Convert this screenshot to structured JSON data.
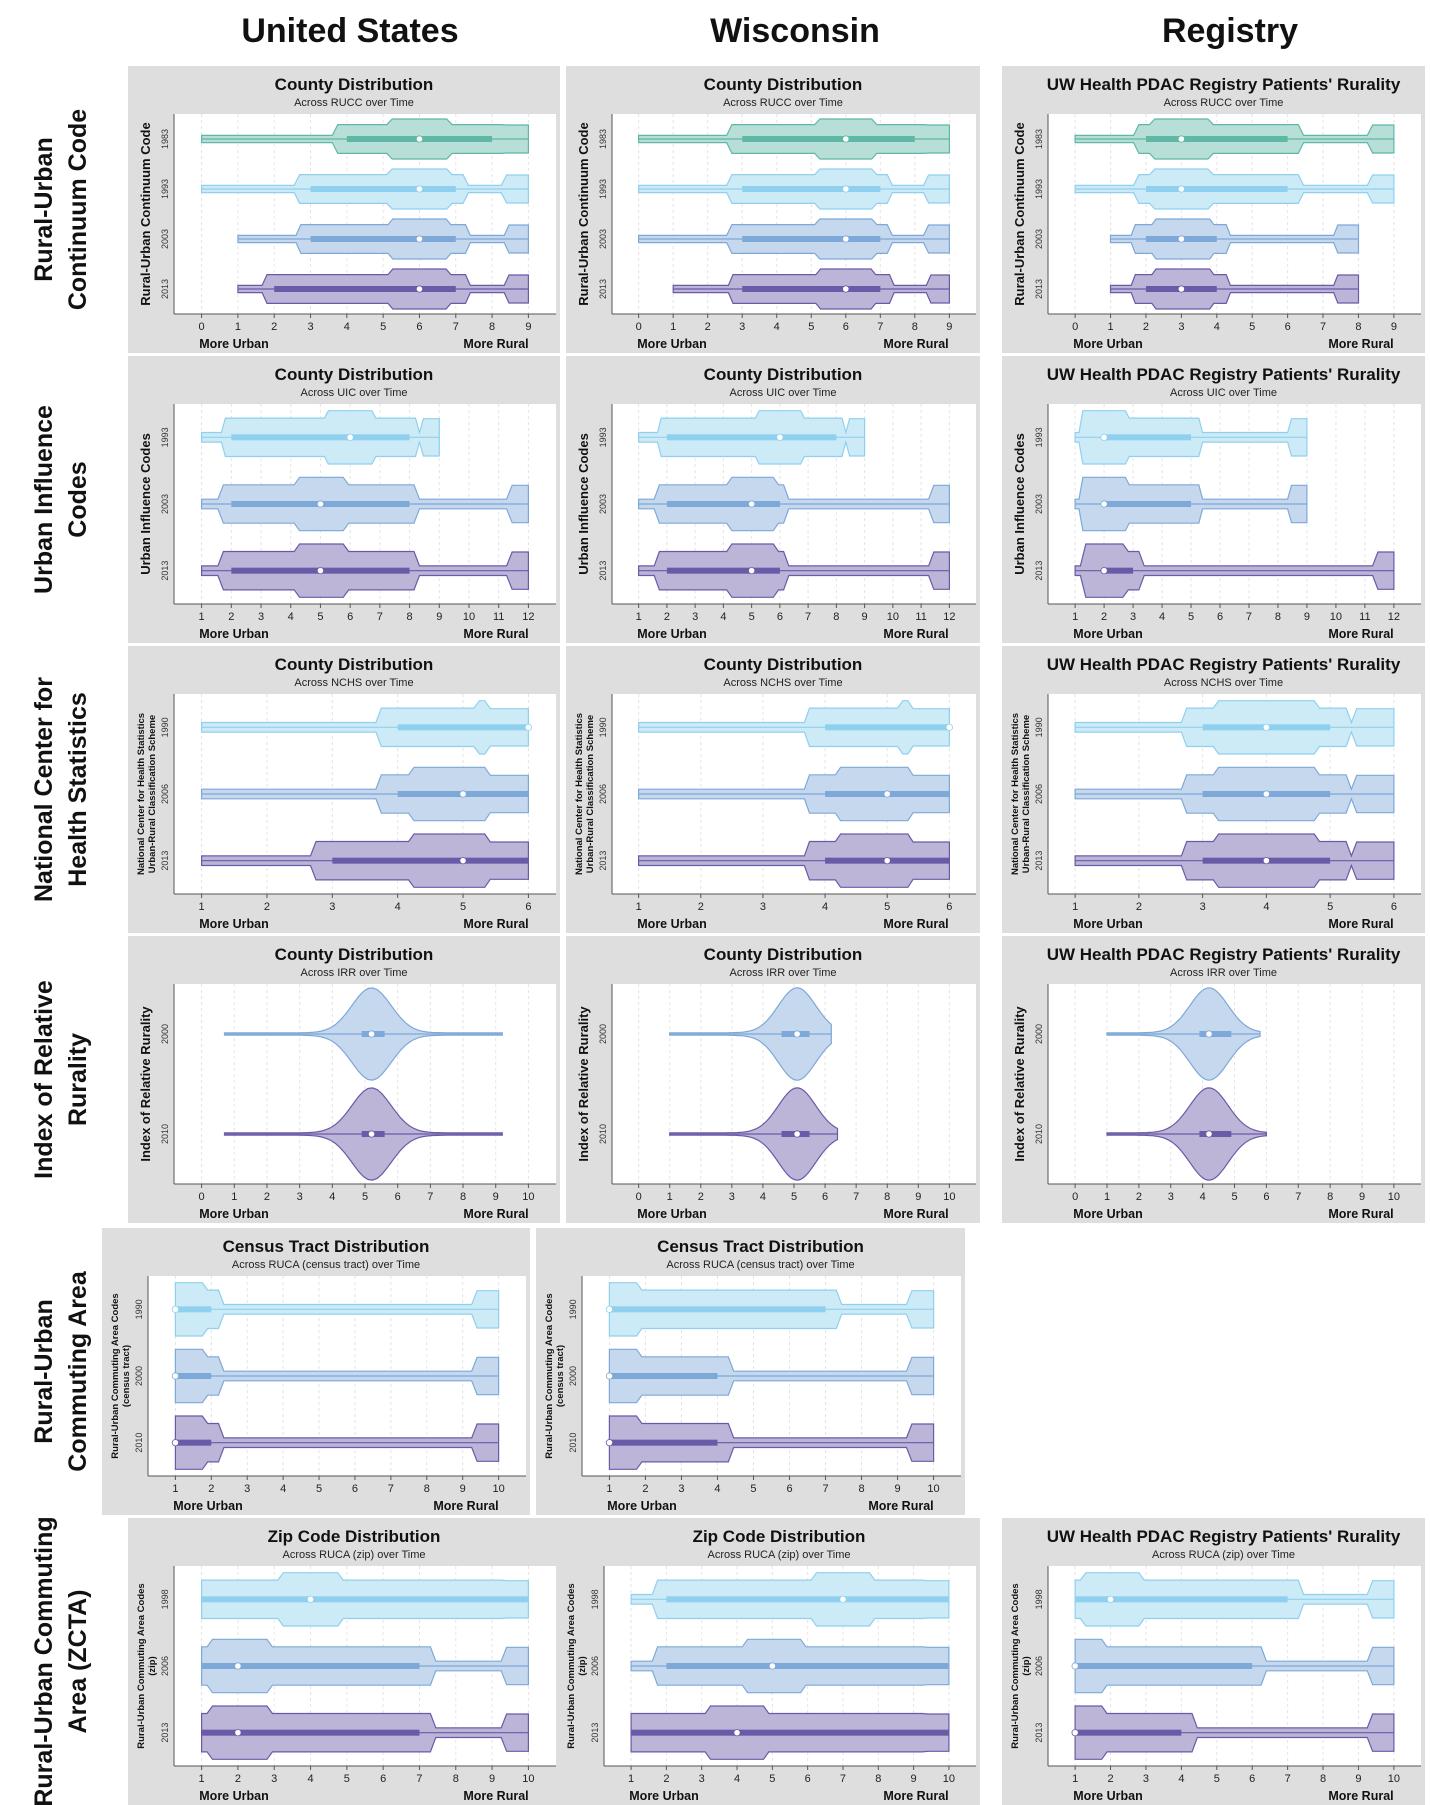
{
  "columns": [
    "United States",
    "Wisconsin",
    "Registry"
  ],
  "rows": [
    "Rural-Urban Continuum Code",
    "Urban Influence Codes",
    "National Center for Health Statistics",
    "Index of Relative Rurality",
    "Rural-Urban Commuting Area",
    "Rural-Urban Commuting Area (ZCTA)"
  ],
  "axis_ends": {
    "left": "More Urban",
    "right": "More Rural"
  },
  "colors": {
    "teal": "#5fb8a6",
    "light_blue": "#8fd0ee",
    "mid_blue": "#7ea8d8",
    "purple": "#6b5aa8",
    "panel_bg": "#dedede"
  },
  "chart_data": [
    {
      "type": "violin",
      "row": 0,
      "col": 0,
      "title": "County Distribution",
      "subtitle": "Across RUCC over Time",
      "ylabel": "Rural-Urban Continuum Code",
      "xlim": [
        0,
        9
      ],
      "xticks": [
        "0",
        "1",
        "2",
        "3",
        "4",
        "5",
        "6",
        "7",
        "8",
        "9"
      ],
      "series": [
        {
          "name": "1983",
          "color": "teal",
          "min": 0,
          "q1": 4,
          "median": 6,
          "q3": 8,
          "max": 9
        },
        {
          "name": "1993",
          "color": "light_blue",
          "min": 0,
          "q1": 3,
          "median": 6,
          "q3": 7,
          "max": 9
        },
        {
          "name": "2003",
          "color": "mid_blue",
          "min": 1,
          "q1": 3,
          "median": 6,
          "q3": 7,
          "max": 9
        },
        {
          "name": "2013",
          "color": "purple",
          "min": 1,
          "q1": 2,
          "median": 6,
          "q3": 7,
          "max": 9
        }
      ]
    },
    {
      "type": "violin",
      "row": 0,
      "col": 1,
      "title": "County Distribution",
      "subtitle": "Across RUCC over Time",
      "ylabel": "Rural-Urban Continuum Code",
      "xlim": [
        0,
        9
      ],
      "xticks": [
        "0",
        "1",
        "2",
        "3",
        "4",
        "5",
        "6",
        "7",
        "8",
        "9"
      ],
      "series": [
        {
          "name": "1983",
          "color": "teal",
          "min": 0,
          "q1": 3,
          "median": 6,
          "q3": 8,
          "max": 9
        },
        {
          "name": "1993",
          "color": "light_blue",
          "min": 0,
          "q1": 3,
          "median": 6,
          "q3": 7,
          "max": 9
        },
        {
          "name": "2003",
          "color": "mid_blue",
          "min": 0,
          "q1": 3,
          "median": 6,
          "q3": 7,
          "max": 9
        },
        {
          "name": "2013",
          "color": "purple",
          "min": 1,
          "q1": 3,
          "median": 6,
          "q3": 7,
          "max": 9
        }
      ]
    },
    {
      "type": "violin",
      "row": 0,
      "col": 2,
      "title": "UW Health PDAC Registry Patients' Rurality",
      "subtitle": "Across RUCC over Time",
      "ylabel": "Rural-Urban Continuum Code",
      "xlim": [
        0,
        9
      ],
      "xticks": [
        "0",
        "1",
        "2",
        "3",
        "4",
        "5",
        "6",
        "7",
        "8",
        "9"
      ],
      "series": [
        {
          "name": "1983",
          "color": "teal",
          "min": 0,
          "q1": 2,
          "median": 3,
          "q3": 6,
          "max": 9
        },
        {
          "name": "1993",
          "color": "light_blue",
          "min": 0,
          "q1": 2,
          "median": 3,
          "q3": 6,
          "max": 9
        },
        {
          "name": "2003",
          "color": "mid_blue",
          "min": 1,
          "q1": 2,
          "median": 3,
          "q3": 4,
          "max": 8
        },
        {
          "name": "2013",
          "color": "purple",
          "min": 1,
          "q1": 2,
          "median": 3,
          "q3": 4,
          "max": 8
        }
      ]
    },
    {
      "type": "violin",
      "row": 1,
      "col": 0,
      "title": "County Distribution",
      "subtitle": "Across UIC over Time",
      "ylabel": "Urban Influence Codes",
      "xlim": [
        1,
        12
      ],
      "xticks": [
        "1",
        "2",
        "3",
        "4",
        "5",
        "6",
        "7",
        "8",
        "9",
        "10",
        "11",
        "12"
      ],
      "series": [
        {
          "name": "1993",
          "color": "light_blue",
          "min": 1,
          "q1": 2,
          "median": 6,
          "q3": 8,
          "max": 9
        },
        {
          "name": "2003",
          "color": "mid_blue",
          "min": 1,
          "q1": 2,
          "median": 5,
          "q3": 8,
          "max": 12
        },
        {
          "name": "2013",
          "color": "purple",
          "min": 1,
          "q1": 2,
          "median": 5,
          "q3": 8,
          "max": 12
        }
      ]
    },
    {
      "type": "violin",
      "row": 1,
      "col": 1,
      "title": "County Distribution",
      "subtitle": "Across UIC over Time",
      "ylabel": "Urban Influence Codes",
      "xlim": [
        1,
        12
      ],
      "xticks": [
        "1",
        "2",
        "3",
        "4",
        "5",
        "6",
        "7",
        "8",
        "9",
        "10",
        "11",
        "12"
      ],
      "series": [
        {
          "name": "1993",
          "color": "light_blue",
          "min": 1,
          "q1": 2,
          "median": 6,
          "q3": 8,
          "max": 9
        },
        {
          "name": "2003",
          "color": "mid_blue",
          "min": 1,
          "q1": 2,
          "median": 5,
          "q3": 6,
          "max": 12
        },
        {
          "name": "2013",
          "color": "purple",
          "min": 1,
          "q1": 2,
          "median": 5,
          "q3": 6,
          "max": 12
        }
      ]
    },
    {
      "type": "violin",
      "row": 1,
      "col": 2,
      "title": "UW Health PDAC Registry Patients' Rurality",
      "subtitle": "Across UIC over Time",
      "ylabel": "Urban Influence Codes",
      "xlim": [
        1,
        12
      ],
      "xticks": [
        "1",
        "2",
        "3",
        "4",
        "5",
        "6",
        "7",
        "8",
        "9",
        "10",
        "11",
        "12"
      ],
      "series": [
        {
          "name": "1993",
          "color": "light_blue",
          "min": 1,
          "q1": 2,
          "median": 2,
          "q3": 5,
          "max": 9
        },
        {
          "name": "2003",
          "color": "mid_blue",
          "min": 1,
          "q1": 2,
          "median": 2,
          "q3": 5,
          "max": 9
        },
        {
          "name": "2013",
          "color": "purple",
          "min": 1,
          "q1": 2,
          "median": 2,
          "q3": 3,
          "max": 12
        }
      ]
    },
    {
      "type": "violin",
      "row": 2,
      "col": 0,
      "title": "County Distribution",
      "subtitle": "Across NCHS over Time",
      "ylabel": "National Center for Health Statistics Urban-Rural Classification Scheme",
      "xlim": [
        1,
        6
      ],
      "xticks": [
        "1",
        "2",
        "3",
        "4",
        "5",
        "6"
      ],
      "series": [
        {
          "name": "1990",
          "color": "light_blue",
          "min": 1,
          "q1": 4,
          "median": 6,
          "q3": 6,
          "max": 6
        },
        {
          "name": "2006",
          "color": "mid_blue",
          "min": 1,
          "q1": 4,
          "median": 5,
          "q3": 6,
          "max": 6
        },
        {
          "name": "2013",
          "color": "purple",
          "min": 1,
          "q1": 3,
          "median": 5,
          "q3": 6,
          "max": 6
        }
      ]
    },
    {
      "type": "violin",
      "row": 2,
      "col": 1,
      "title": "County Distribution",
      "subtitle": "Across NCHS over Time",
      "ylabel": "National Center for Health Statistics Urban-Rural Classification Scheme",
      "xlim": [
        1,
        6
      ],
      "xticks": [
        "1",
        "2",
        "3",
        "4",
        "5",
        "6"
      ],
      "series": [
        {
          "name": "1990",
          "color": "light_blue",
          "min": 1,
          "q1": 4,
          "median": 6,
          "q3": 6,
          "max": 6
        },
        {
          "name": "2006",
          "color": "mid_blue",
          "min": 1,
          "q1": 4,
          "median": 5,
          "q3": 6,
          "max": 6
        },
        {
          "name": "2013",
          "color": "purple",
          "min": 1,
          "q1": 4,
          "median": 5,
          "q3": 6,
          "max": 6
        }
      ]
    },
    {
      "type": "violin",
      "row": 2,
      "col": 2,
      "title": "UW Health PDAC Registry Patients' Rurality",
      "subtitle": "Across NCHS over Time",
      "ylabel": "National Center for Health Statistics Urban-Rural Classification Scheme",
      "xlim": [
        1,
        6
      ],
      "xticks": [
        "1",
        "2",
        "3",
        "4",
        "5",
        "6"
      ],
      "series": [
        {
          "name": "1990",
          "color": "light_blue",
          "min": 1,
          "q1": 3,
          "median": 4,
          "q3": 5,
          "max": 6
        },
        {
          "name": "2006",
          "color": "mid_blue",
          "min": 1,
          "q1": 3,
          "median": 4,
          "q3": 5,
          "max": 6
        },
        {
          "name": "2013",
          "color": "purple",
          "min": 1,
          "q1": 3,
          "median": 4,
          "q3": 5,
          "max": 6
        }
      ]
    },
    {
      "type": "violin",
      "row": 3,
      "col": 0,
      "title": "County Distribution",
      "subtitle": "Across IRR over Time",
      "ylabel": "Index of Relative Rurality",
      "xlim": [
        0,
        10
      ],
      "xticks": [
        "0",
        "1",
        "2",
        "3",
        "4",
        "5",
        "6",
        "7",
        "8",
        "9",
        "10"
      ],
      "series": [
        {
          "name": "2000",
          "color": "mid_blue",
          "min": 0.7,
          "q1": 4.9,
          "median": 5.2,
          "q3": 5.6,
          "max": 9.2
        },
        {
          "name": "2010",
          "color": "purple",
          "min": 0.7,
          "q1": 4.9,
          "median": 5.2,
          "q3": 5.6,
          "max": 9.2
        }
      ]
    },
    {
      "type": "violin",
      "row": 3,
      "col": 1,
      "title": "County Distribution",
      "subtitle": "Across IRR over Time",
      "ylabel": "Index of Relative Rurality",
      "xlim": [
        0,
        10
      ],
      "xticks": [
        "0",
        "1",
        "2",
        "3",
        "4",
        "5",
        "6",
        "7",
        "8",
        "9",
        "10"
      ],
      "series": [
        {
          "name": "2000",
          "color": "mid_blue",
          "min": 1.0,
          "q1": 4.6,
          "median": 5.1,
          "q3": 5.5,
          "max": 6.2
        },
        {
          "name": "2010",
          "color": "purple",
          "min": 1.0,
          "q1": 4.6,
          "median": 5.1,
          "q3": 5.5,
          "max": 6.4
        }
      ]
    },
    {
      "type": "violin",
      "row": 3,
      "col": 2,
      "title": "UW Health PDAC Registry Patients' Rurality",
      "subtitle": "Across IRR over Time",
      "ylabel": "Index of Relative Rurality",
      "xlim": [
        0,
        10
      ],
      "xticks": [
        "0",
        "1",
        "2",
        "3",
        "4",
        "5",
        "6",
        "7",
        "8",
        "9",
        "10"
      ],
      "series": [
        {
          "name": "2000",
          "color": "mid_blue",
          "min": 1.0,
          "q1": 3.9,
          "median": 4.2,
          "q3": 4.9,
          "max": 5.8
        },
        {
          "name": "2010",
          "color": "purple",
          "min": 1.0,
          "q1": 3.9,
          "median": 4.2,
          "q3": 4.9,
          "max": 6.0
        }
      ]
    },
    {
      "type": "violin",
      "row": 4,
      "col": 0,
      "title": "Census Tract Distribution",
      "subtitle": "Across RUCA (census tract) over Time",
      "ylabel": "Rural-Urban Commuting Area Codes (census tract)",
      "xlim": [
        1,
        10
      ],
      "xticks": [
        "1",
        "2",
        "3",
        "4",
        "5",
        "6",
        "7",
        "8",
        "9",
        "10"
      ],
      "series": [
        {
          "name": "1990",
          "color": "light_blue",
          "min": 1,
          "q1": 1,
          "median": 1,
          "q3": 2,
          "max": 10
        },
        {
          "name": "2000",
          "color": "mid_blue",
          "min": 1,
          "q1": 1,
          "median": 1,
          "q3": 2,
          "max": 10
        },
        {
          "name": "2010",
          "color": "purple",
          "min": 1,
          "q1": 1,
          "median": 1,
          "q3": 2,
          "max": 10
        }
      ]
    },
    {
      "type": "violin",
      "row": 4,
      "col": 1,
      "title": "Census Tract Distribution",
      "subtitle": "Across RUCA (census tract) over Time",
      "ylabel": "Rural-Urban Commuting Area Codes (census tract)",
      "xlim": [
        1,
        10
      ],
      "xticks": [
        "1",
        "2",
        "3",
        "4",
        "5",
        "6",
        "7",
        "8",
        "9",
        "10"
      ],
      "series": [
        {
          "name": "1990",
          "color": "light_blue",
          "min": 1,
          "q1": 1,
          "median": 1,
          "q3": 7,
          "max": 10
        },
        {
          "name": "2000",
          "color": "mid_blue",
          "min": 1,
          "q1": 1,
          "median": 1,
          "q3": 4,
          "max": 10
        },
        {
          "name": "2010",
          "color": "purple",
          "min": 1,
          "q1": 1,
          "median": 1,
          "q3": 4,
          "max": 10
        }
      ]
    },
    {
      "type": "violin",
      "row": 5,
      "col": 0,
      "title": "Zip Code Distribution",
      "subtitle": "Across RUCA (zip) over Time",
      "ylabel": "Rural-Urban Commuting Area Codes (zip)",
      "xlim": [
        1,
        10
      ],
      "xticks": [
        "1",
        "2",
        "3",
        "4",
        "5",
        "6",
        "7",
        "8",
        "9",
        "10"
      ],
      "series": [
        {
          "name": "1998",
          "color": "light_blue",
          "min": 1,
          "q1": 1,
          "median": 4,
          "q3": 10,
          "max": 10
        },
        {
          "name": "2006",
          "color": "mid_blue",
          "min": 1,
          "q1": 1,
          "median": 2,
          "q3": 7,
          "max": 10
        },
        {
          "name": "2013",
          "color": "purple",
          "min": 1,
          "q1": 1,
          "median": 2,
          "q3": 7,
          "max": 10
        }
      ]
    },
    {
      "type": "violin",
      "row": 5,
      "col": 1,
      "title": "Zip Code Distribution",
      "subtitle": "Across RUCA (zip) over Time",
      "ylabel": "Rural-Urban Commuting Area Codes (zip)",
      "xlim": [
        1,
        10
      ],
      "xticks": [
        "1",
        "2",
        "3",
        "4",
        "5",
        "6",
        "7",
        "8",
        "9",
        "10"
      ],
      "series": [
        {
          "name": "1998",
          "color": "light_blue",
          "min": 1,
          "q1": 2,
          "median": 7,
          "q3": 10,
          "max": 10
        },
        {
          "name": "2006",
          "color": "mid_blue",
          "min": 1,
          "q1": 2,
          "median": 5,
          "q3": 10,
          "max": 10
        },
        {
          "name": "2013",
          "color": "purple",
          "min": 1,
          "q1": 1,
          "median": 4,
          "q3": 10,
          "max": 10
        }
      ]
    },
    {
      "type": "violin",
      "row": 5,
      "col": 2,
      "title": "UW Health PDAC Registry Patients' Rurality",
      "subtitle": "Across RUCA (zip) over Time",
      "ylabel": "Rural-Urban Commuting Area Codes (zip)",
      "xlim": [
        1,
        10
      ],
      "xticks": [
        "1",
        "2",
        "3",
        "4",
        "5",
        "6",
        "7",
        "8",
        "9",
        "10"
      ],
      "series": [
        {
          "name": "1998",
          "color": "light_blue",
          "min": 1,
          "q1": 1,
          "median": 2,
          "q3": 7,
          "max": 10
        },
        {
          "name": "2006",
          "color": "mid_blue",
          "min": 1,
          "q1": 1,
          "median": 1,
          "q3": 6,
          "max": 10
        },
        {
          "name": "2013",
          "color": "purple",
          "min": 1,
          "q1": 1,
          "median": 1,
          "q3": 4,
          "max": 10
        }
      ]
    }
  ]
}
